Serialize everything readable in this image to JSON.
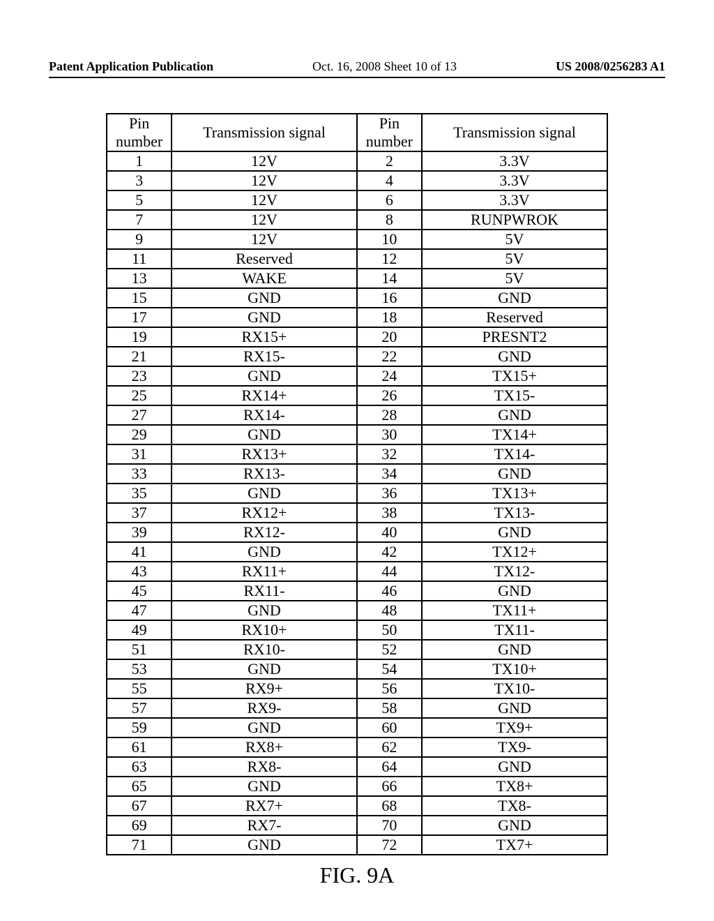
{
  "header": {
    "left": "Patent Application Publication",
    "center": "Oct. 16, 2008  Sheet 10 of 13",
    "right": "US 2008/0256283 A1"
  },
  "table": {
    "columns": [
      "Pin number",
      "Transmission signal",
      "Pin number",
      "Transmission signal"
    ],
    "rows": [
      [
        "1",
        "12V",
        "2",
        "3.3V"
      ],
      [
        "3",
        "12V",
        "4",
        "3.3V"
      ],
      [
        "5",
        "12V",
        "6",
        "3.3V"
      ],
      [
        "7",
        "12V",
        "8",
        "RUNPWROK"
      ],
      [
        "9",
        "12V",
        "10",
        "5V"
      ],
      [
        "11",
        "Reserved",
        "12",
        "5V"
      ],
      [
        "13",
        "WAKE",
        "14",
        "5V"
      ],
      [
        "15",
        "GND",
        "16",
        "GND"
      ],
      [
        "17",
        "GND",
        "18",
        "Reserved"
      ],
      [
        "19",
        "RX15+",
        "20",
        "PRESNT2"
      ],
      [
        "21",
        "RX15-",
        "22",
        "GND"
      ],
      [
        "23",
        "GND",
        "24",
        "TX15+"
      ],
      [
        "25",
        "RX14+",
        "26",
        "TX15-"
      ],
      [
        "27",
        "RX14-",
        "28",
        "GND"
      ],
      [
        "29",
        "GND",
        "30",
        "TX14+"
      ],
      [
        "31",
        "RX13+",
        "32",
        "TX14-"
      ],
      [
        "33",
        "RX13-",
        "34",
        "GND"
      ],
      [
        "35",
        "GND",
        "36",
        "TX13+"
      ],
      [
        "37",
        "RX12+",
        "38",
        "TX13-"
      ],
      [
        "39",
        "RX12-",
        "40",
        "GND"
      ],
      [
        "41",
        "GND",
        "42",
        "TX12+"
      ],
      [
        "43",
        "RX11+",
        "44",
        "TX12-"
      ],
      [
        "45",
        "RX11-",
        "46",
        "GND"
      ],
      [
        "47",
        "GND",
        "48",
        "TX11+"
      ],
      [
        "49",
        "RX10+",
        "50",
        "TX11-"
      ],
      [
        "51",
        "RX10-",
        "52",
        "GND"
      ],
      [
        "53",
        "GND",
        "54",
        "TX10+"
      ],
      [
        "55",
        "RX9+",
        "56",
        "TX10-"
      ],
      [
        "57",
        "RX9-",
        "58",
        "GND"
      ],
      [
        "59",
        "GND",
        "60",
        "TX9+"
      ],
      [
        "61",
        "RX8+",
        "62",
        "TX9-"
      ],
      [
        "63",
        "RX8-",
        "64",
        "GND"
      ],
      [
        "65",
        "GND",
        "66",
        "TX8+"
      ],
      [
        "67",
        "RX7+",
        "68",
        "TX8-"
      ],
      [
        "69",
        "RX7-",
        "70",
        "GND"
      ],
      [
        "71",
        "GND",
        "72",
        "TX7+"
      ]
    ]
  },
  "figure_caption": "FIG. 9A"
}
